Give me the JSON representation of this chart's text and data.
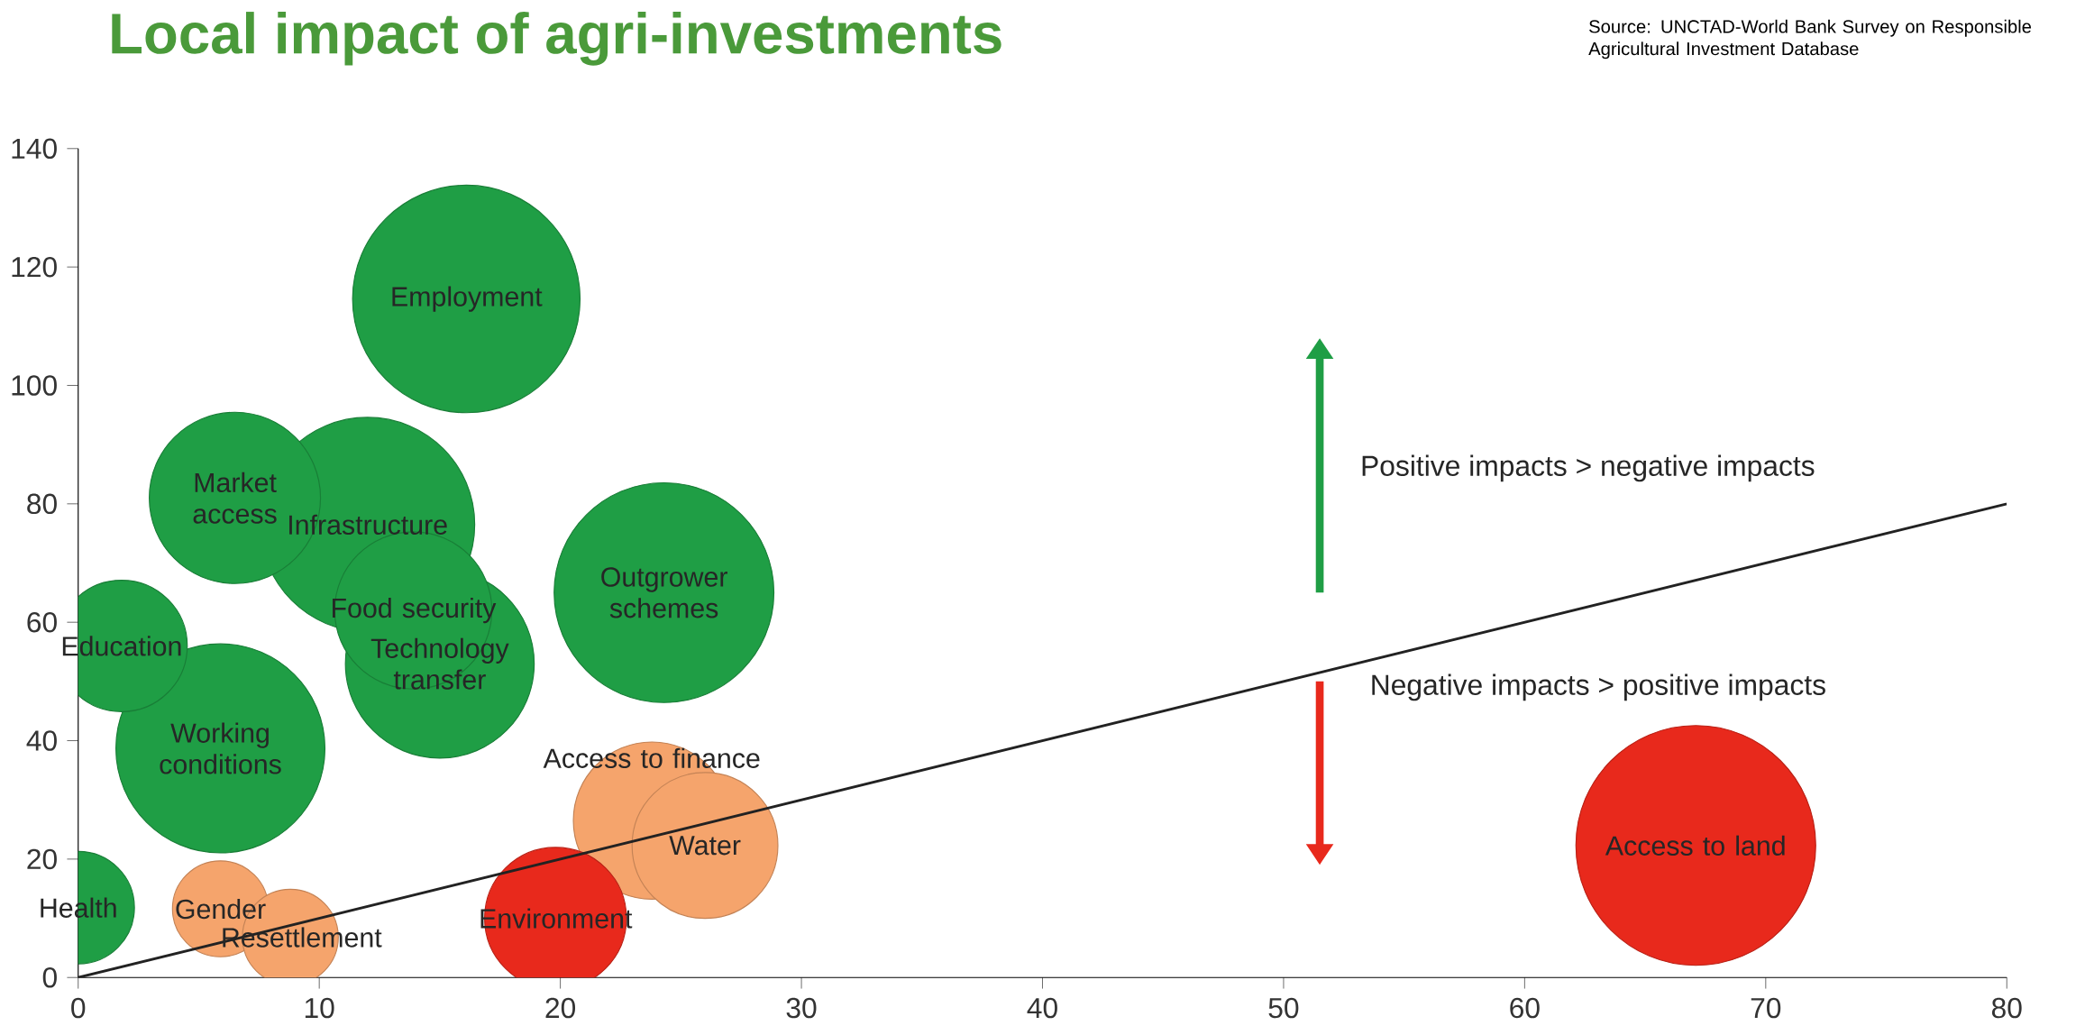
{
  "chart_data": {
    "type": "bubble",
    "title": "Local impact of agri-investments",
    "xlim": [
      0,
      80
    ],
    "ylim": [
      0,
      140
    ],
    "xticks": [
      0,
      10,
      20,
      30,
      40,
      50,
      60,
      70,
      80
    ],
    "yticks": [
      0,
      20,
      40,
      60,
      80,
      100,
      120,
      140
    ],
    "series": [
      {
        "type": "bubble",
        "x": [
          67.1,
          16.1,
          24.3,
          12,
          5.9,
          15,
          6.5,
          13.9,
          23.8,
          26,
          19.8,
          1.8,
          0,
          5.9,
          8.8
        ],
        "values": [
          22.3,
          114.6,
          65,
          76.5,
          38.7,
          53,
          81,
          62,
          26.5,
          22.3,
          10,
          56,
          11.8,
          11.6,
          6.8
        ],
        "sizes": [
          1,
          0.9,
          0.84,
          0.8,
          0.76,
          0.62,
          0.51,
          0.43,
          0.43,
          0.37,
          0.35,
          0.3,
          0.22,
          0.16,
          0.16
        ],
        "colors": [
          "#e8291c",
          "#1f9e45",
          "#1f9e45",
          "#1f9e45",
          "#1f9e45",
          "#1f9e45",
          "#1f9e45",
          "#1f9e45",
          "#f5a46c",
          "#f5a46c",
          "#e8291c",
          "#1f9e45",
          "#1f9e45",
          "#f5a46c",
          "#f5a46c"
        ]
      },
      {
        "type": "line",
        "x": [
          0,
          80
        ],
        "values": [
          0,
          80
        ],
        "color": "#222222"
      }
    ],
    "annotations": [
      {
        "text": "Access to land",
        "x": 67.1,
        "y": 22.3
      },
      {
        "text": "Employment",
        "x": 16.1,
        "y": 114.6
      },
      {
        "text": "Outgrower schemes",
        "x": 24.3,
        "y": 65
      },
      {
        "text": "Infrastructure",
        "x": 12,
        "y": 76.5
      },
      {
        "text": "Working conditions",
        "x": 5.9,
        "y": 38.7
      },
      {
        "text": "Technology transfer",
        "x": 15,
        "y": 53
      },
      {
        "text": "Market access",
        "x": 6.5,
        "y": 81
      },
      {
        "text": "Food security",
        "x": 13.9,
        "y": 62
      },
      {
        "text": "Access to finance",
        "x": 23.8,
        "y": 26.5
      },
      {
        "text": "Water",
        "x": 26,
        "y": 22.3
      },
      {
        "text": "Environment",
        "x": 19.8,
        "y": 10
      },
      {
        "text": "Education",
        "x": 1.8,
        "y": 56
      },
      {
        "text": "Health",
        "x": 0,
        "y": 11.8
      },
      {
        "text": "Gender",
        "x": 5.9,
        "y": 11.6
      },
      {
        "text": "Resettlement",
        "x": 8.8,
        "y": 6.8
      },
      "Positive impacts > negative impacts",
      "Negative impacts > positive impacts",
      "Source: UNCTAD-World Bank Survey on Responsible Agricultural Investment Database"
    ]
  }
}
